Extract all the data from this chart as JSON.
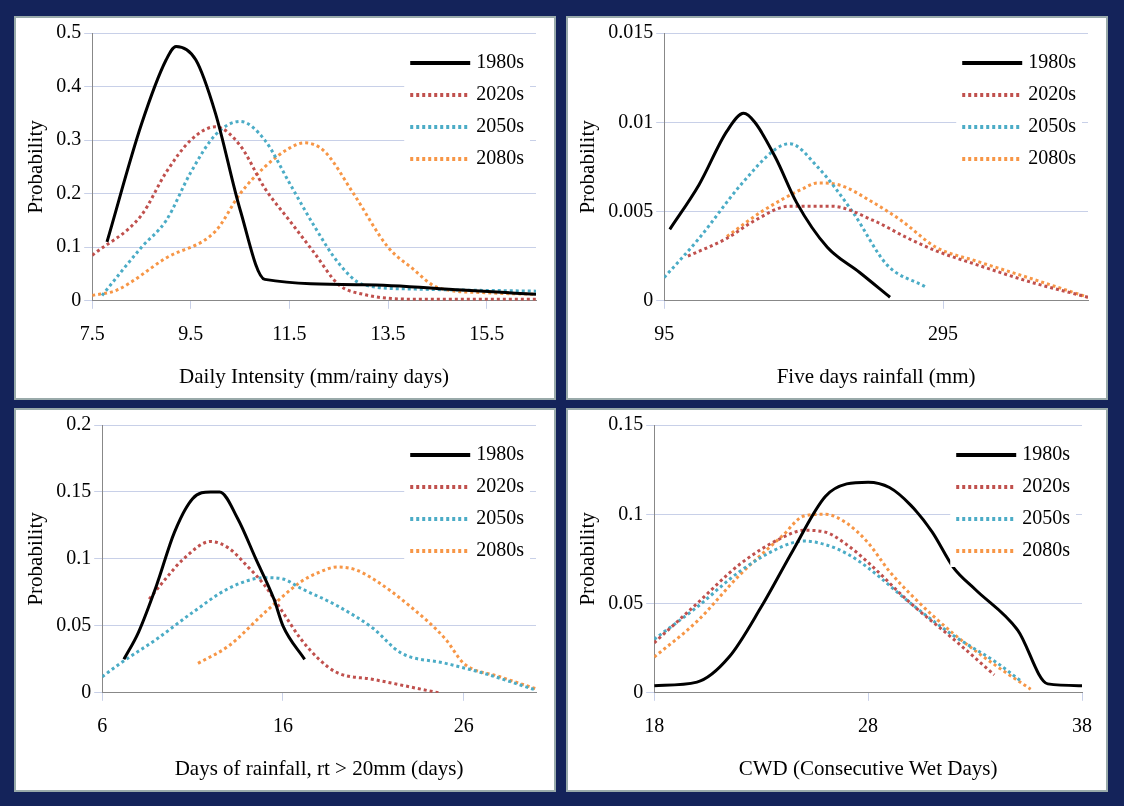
{
  "chart_data": [
    {
      "type": "line",
      "xlabel": "Daily Intensity (mm/rainy days)",
      "ylabel": "Probability",
      "xlim": [
        7.5,
        16.5
      ],
      "xticks": [
        7.5,
        9.5,
        11.5,
        13.5,
        15.5
      ],
      "ylim": [
        0,
        0.5
      ],
      "yticks": [
        0,
        0.1,
        0.2,
        0.3,
        0.4,
        0.5
      ],
      "grid": "y",
      "legend": "top right",
      "series": [
        {
          "name": "1980s",
          "color": "#000000",
          "line_style": "solid",
          "x": [
            7.8,
            8.5,
            9.0,
            9.2,
            9.6,
            10.0,
            10.5,
            11.0,
            13.0,
            15.0,
            16.5
          ],
          "values": [
            0.11,
            0.33,
            0.45,
            0.475,
            0.45,
            0.35,
            0.17,
            0.04,
            0.03,
            0.02,
            0.012
          ]
        },
        {
          "name": "2020s",
          "color": "#c0504d",
          "line_style": "dotted",
          "x": [
            7.5,
            8.5,
            9.0,
            9.5,
            10.0,
            10.5,
            11.0,
            11.5,
            12.0,
            12.5,
            13.0,
            14.0,
            16.5
          ],
          "values": [
            0.085,
            0.16,
            0.24,
            0.3,
            0.325,
            0.29,
            0.21,
            0.15,
            0.09,
            0.03,
            0.012,
            0.003,
            0.003
          ]
        },
        {
          "name": "2050s",
          "color": "#4bacc6",
          "line_style": "dotted",
          "x": [
            7.7,
            8.5,
            9.0,
            9.5,
            10.0,
            10.5,
            11.0,
            11.5,
            12.0,
            12.5,
            13.0,
            14.0,
            16.5
          ],
          "values": [
            0.01,
            0.1,
            0.15,
            0.24,
            0.31,
            0.335,
            0.3,
            0.22,
            0.14,
            0.07,
            0.03,
            0.022,
            0.018
          ]
        },
        {
          "name": "2080s",
          "color": "#f79646",
          "line_style": "dotted",
          "x": [
            7.5,
            8.0,
            9.0,
            10.0,
            10.5,
            11.0,
            11.5,
            11.8,
            12.2,
            12.8,
            13.5,
            14.0,
            14.5,
            15.5,
            16.5
          ],
          "values": [
            0.01,
            0.02,
            0.08,
            0.13,
            0.2,
            0.25,
            0.285,
            0.295,
            0.28,
            0.2,
            0.1,
            0.06,
            0.025,
            0.015,
            0.012
          ]
        }
      ]
    },
    {
      "type": "line",
      "xlabel": "Five days rainfall (mm)",
      "ylabel": "Probability",
      "xlim": [
        95,
        399
      ],
      "xticks": [
        95,
        295
      ],
      "ylim": [
        0,
        0.015
      ],
      "yticks": [
        0,
        0.005,
        0.01,
        0.015
      ],
      "grid": "y",
      "legend": "top right",
      "series": [
        {
          "name": "1980s",
          "color": "#000000",
          "line_style": "solid",
          "x": [
            99,
            120,
            140,
            152,
            160,
            175,
            190,
            212,
            235,
            257
          ],
          "values": [
            0.004,
            0.0065,
            0.0095,
            0.0105,
            0.01,
            0.008,
            0.0055,
            0.003,
            0.0016,
            0.0002
          ]
        },
        {
          "name": "2020s",
          "color": "#c0504d",
          "line_style": "dotted",
          "x": [
            112,
            140,
            160,
            185,
            215,
            245,
            270,
            290,
            320,
            360,
            399
          ],
          "values": [
            0.0025,
            0.0035,
            0.0045,
            0.0053,
            0.0053,
            0.0045,
            0.0035,
            0.0028,
            0.002,
            0.001,
            0.0002
          ]
        },
        {
          "name": "2050s",
          "color": "#4bacc6",
          "line_style": "dotted",
          "x": [
            95,
            120,
            150,
            175,
            185,
            205,
            230,
            255,
            282
          ],
          "values": [
            0.0013,
            0.0035,
            0.0065,
            0.0085,
            0.0088,
            0.0075,
            0.005,
            0.002,
            0.0008
          ]
        },
        {
          "name": "2080s",
          "color": "#f79646",
          "line_style": "dotted",
          "x": [
            140,
            165,
            195,
            205,
            220,
            245,
            265,
            290,
            320,
            360,
            399
          ],
          "values": [
            0.0036,
            0.005,
            0.0063,
            0.0066,
            0.0065,
            0.0055,
            0.0045,
            0.003,
            0.0022,
            0.0012,
            0.0002
          ]
        }
      ]
    },
    {
      "type": "line",
      "xlabel": "Days of rainfall, rt > 20mm (days)",
      "ylabel": "Probability",
      "xlim": [
        6,
        30
      ],
      "xticks": [
        6,
        16,
        26
      ],
      "ylim": [
        0,
        0.2
      ],
      "yticks": [
        0,
        0.05,
        0.1,
        0.15,
        0.2
      ],
      "grid": "y",
      "legend": "top right",
      "series": [
        {
          "name": "1980s",
          "color": "#000000",
          "line_style": "solid",
          "x": [
            7.2,
            8,
            9,
            10,
            11,
            12,
            12.5,
            13.5,
            14.5,
            15.5,
            16,
            17.2
          ],
          "values": [
            0.025,
            0.045,
            0.08,
            0.12,
            0.145,
            0.15,
            0.15,
            0.13,
            0.1,
            0.07,
            0.05,
            0.025
          ]
        },
        {
          "name": "2020s",
          "color": "#c0504d",
          "line_style": "dotted",
          "x": [
            8.6,
            9.5,
            10.5,
            12,
            13,
            14,
            15,
            16,
            17,
            18,
            19,
            21,
            24.6
          ],
          "values": [
            0.07,
            0.085,
            0.1,
            0.113,
            0.108,
            0.095,
            0.08,
            0.06,
            0.04,
            0.025,
            0.015,
            0.01,
            0
          ]
        },
        {
          "name": "2050s",
          "color": "#4bacc6",
          "line_style": "dotted",
          "x": [
            6,
            7,
            9,
            11,
            13,
            15,
            16,
            17,
            19,
            21,
            22.5,
            25,
            27,
            30
          ],
          "values": [
            0.012,
            0.022,
            0.04,
            0.06,
            0.078,
            0.086,
            0.085,
            0.078,
            0.065,
            0.048,
            0.03,
            0.022,
            0.015,
            0.002
          ]
        },
        {
          "name": "2080s",
          "color": "#f79646",
          "line_style": "dotted",
          "x": [
            11.3,
            13,
            15,
            17,
            18,
            19,
            20,
            21,
            23,
            25,
            26,
            28,
            30
          ],
          "values": [
            0.022,
            0.035,
            0.06,
            0.083,
            0.09,
            0.094,
            0.092,
            0.085,
            0.065,
            0.04,
            0.022,
            0.012,
            0.003
          ]
        }
      ]
    },
    {
      "type": "line",
      "xlabel": "CWD (Consecutive Wet Days)",
      "ylabel": "Probability",
      "xlim": [
        18,
        38
      ],
      "xticks": [
        18,
        28,
        38
      ],
      "ylim": [
        0,
        0.15
      ],
      "yticks": [
        0,
        0.05,
        0.1,
        0.15
      ],
      "grid": "y",
      "legend": "top right",
      "series": [
        {
          "name": "1980s",
          "color": "#000000",
          "line_style": "solid",
          "x": [
            18,
            20,
            21.5,
            23,
            24.5,
            26,
            27,
            28,
            29,
            30,
            31,
            32,
            33,
            35,
            36.4,
            38
          ],
          "values": [
            0.004,
            0.006,
            0.02,
            0.048,
            0.08,
            0.11,
            0.117,
            0.118,
            0.115,
            0.105,
            0.09,
            0.07,
            0.058,
            0.035,
            0.005,
            0.004
          ]
        },
        {
          "name": "2020s",
          "color": "#c0504d",
          "line_style": "dotted",
          "x": [
            18,
            20,
            22,
            24,
            25,
            26,
            27,
            28,
            30,
            32,
            33.9
          ],
          "values": [
            0.028,
            0.05,
            0.072,
            0.087,
            0.091,
            0.09,
            0.083,
            0.073,
            0.05,
            0.03,
            0.01
          ]
        },
        {
          "name": "2050s",
          "color": "#4bacc6",
          "line_style": "dotted",
          "x": [
            18,
            20,
            22,
            24,
            25,
            26,
            27,
            28,
            30,
            32,
            34,
            35.1
          ],
          "values": [
            0.03,
            0.048,
            0.068,
            0.082,
            0.085,
            0.083,
            0.078,
            0.07,
            0.05,
            0.032,
            0.017,
            0.007
          ]
        },
        {
          "name": "2080s",
          "color": "#f79646",
          "line_style": "dotted",
          "x": [
            18,
            20,
            22,
            24,
            25,
            26,
            27,
            28,
            29,
            30,
            32,
            34,
            35.6
          ],
          "values": [
            0.02,
            0.04,
            0.066,
            0.088,
            0.099,
            0.1,
            0.095,
            0.084,
            0.068,
            0.055,
            0.033,
            0.015,
            0.002
          ]
        }
      ]
    }
  ]
}
